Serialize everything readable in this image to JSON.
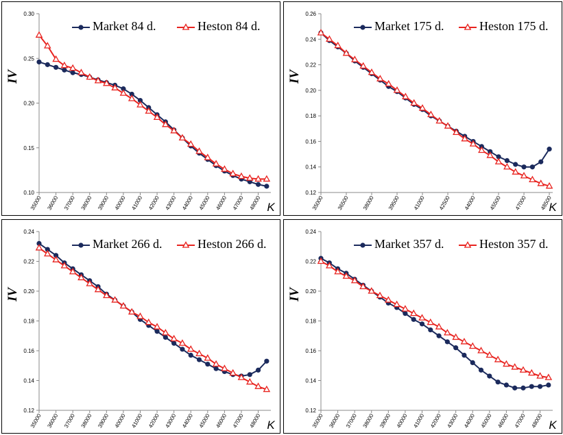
{
  "chart_data": [
    {
      "type": "line",
      "x_label": "K",
      "y_label": "IV",
      "x": [
        35000,
        35500,
        36000,
        36500,
        37000,
        37500,
        38000,
        38500,
        39000,
        39500,
        40000,
        40500,
        41000,
        41500,
        42000,
        42500,
        43000,
        43500,
        44000,
        44500,
        45000,
        45500,
        46000,
        46500,
        47000,
        47500,
        48000,
        48500
      ],
      "series": [
        {
          "name": "Market 84 d.",
          "color": "#1b2a5c",
          "marker": "circle",
          "values": [
            0.246,
            0.243,
            0.24,
            0.237,
            0.234,
            0.232,
            0.229,
            0.226,
            0.223,
            0.22,
            0.216,
            0.21,
            0.203,
            0.195,
            0.187,
            0.179,
            0.17,
            0.161,
            0.152,
            0.144,
            0.137,
            0.13,
            0.124,
            0.119,
            0.115,
            0.112,
            0.109,
            0.107
          ]
        },
        {
          "name": "Heston 84 d.",
          "color": "#e8231f",
          "marker": "triangle",
          "values": [
            0.276,
            0.264,
            0.249,
            0.242,
            0.239,
            0.234,
            0.229,
            0.225,
            0.222,
            0.217,
            0.211,
            0.205,
            0.198,
            0.191,
            0.184,
            0.176,
            0.169,
            0.161,
            0.154,
            0.146,
            0.139,
            0.132,
            0.126,
            0.121,
            0.118,
            0.116,
            0.115,
            0.115
          ]
        }
      ],
      "xlim": [
        35000,
        48750
      ],
      "xticks": [
        35000,
        36000,
        37000,
        38000,
        39000,
        40000,
        41000,
        42000,
        43000,
        44000,
        45000,
        46000,
        47000,
        48000
      ],
      "ylim": [
        0.1,
        0.3
      ],
      "yticks": [
        {
          "value": 0.1,
          "label": "0.10"
        },
        0.15,
        {
          "value": 0.2,
          "label": "0.20"
        },
        0.25,
        {
          "value": 0.3,
          "label": "0.30"
        }
      ]
    },
    {
      "type": "line",
      "x_label": "K",
      "y_label": "IV",
      "x": [
        35000,
        35500,
        36000,
        36500,
        37000,
        37500,
        38000,
        38500,
        39000,
        39500,
        40000,
        40500,
        41000,
        41500,
        42000,
        42500,
        43000,
        43500,
        44000,
        44500,
        45000,
        45500,
        46000,
        46500,
        47000,
        47500,
        48000,
        48500
      ],
      "series": [
        {
          "name": "Market 175 d.",
          "color": "#1b2a5c",
          "marker": "circle",
          "values": [
            0.245,
            0.239,
            0.234,
            0.229,
            0.223,
            0.218,
            0.213,
            0.208,
            0.203,
            0.199,
            0.194,
            0.189,
            0.185,
            0.18,
            0.176,
            0.172,
            0.168,
            0.164,
            0.16,
            0.156,
            0.152,
            0.148,
            0.145,
            0.142,
            0.14,
            0.14,
            0.144,
            0.154
          ]
        },
        {
          "name": "Heston 175 d.",
          "color": "#e8231f",
          "marker": "triangle",
          "values": [
            0.245,
            0.24,
            0.235,
            0.229,
            0.224,
            0.219,
            0.214,
            0.209,
            0.205,
            0.2,
            0.195,
            0.19,
            0.186,
            0.181,
            0.176,
            0.172,
            0.167,
            0.162,
            0.158,
            0.153,
            0.149,
            0.144,
            0.14,
            0.136,
            0.133,
            0.13,
            0.127,
            0.125
          ]
        }
      ],
      "xlim": [
        35000,
        48700
      ],
      "xticks": [
        35000,
        36500,
        38000,
        39500,
        41000,
        42500,
        44000,
        45500,
        47000,
        48500
      ],
      "ylim": [
        0.12,
        0.26
      ],
      "yticks": [
        0.12,
        0.14,
        0.16,
        0.18,
        {
          "value": 0.2,
          "label": "0.20"
        },
        0.22,
        0.24,
        0.26
      ]
    },
    {
      "type": "line",
      "x_label": "K",
      "y_label": "IV",
      "x": [
        35000,
        35500,
        36000,
        36500,
        37000,
        37500,
        38000,
        38500,
        39000,
        39500,
        40000,
        40500,
        41000,
        41500,
        42000,
        42500,
        43000,
        43500,
        44000,
        44500,
        45000,
        45500,
        46000,
        46500,
        47000,
        47500,
        48000,
        48500
      ],
      "series": [
        {
          "name": "Market 266 d.",
          "color": "#1b2a5c",
          "marker": "circle",
          "values": [
            0.232,
            0.228,
            0.224,
            0.219,
            0.215,
            0.211,
            0.207,
            0.203,
            0.198,
            0.194,
            0.19,
            0.186,
            0.181,
            0.177,
            0.173,
            0.169,
            0.165,
            0.161,
            0.157,
            0.154,
            0.151,
            0.148,
            0.146,
            0.144,
            0.143,
            0.144,
            0.147,
            0.153
          ]
        },
        {
          "name": "Heston 266 d.",
          "color": "#e8231f",
          "marker": "triangle",
          "values": [
            0.229,
            0.225,
            0.221,
            0.217,
            0.213,
            0.209,
            0.205,
            0.201,
            0.197,
            0.194,
            0.19,
            0.186,
            0.183,
            0.179,
            0.176,
            0.172,
            0.168,
            0.165,
            0.161,
            0.158,
            0.155,
            0.151,
            0.148,
            0.145,
            0.142,
            0.139,
            0.136,
            0.134
          ]
        }
      ],
      "xlim": [
        35000,
        48750
      ],
      "xticks": [
        35000,
        36000,
        37000,
        38000,
        39000,
        40000,
        41000,
        42000,
        43000,
        44000,
        45000,
        46000,
        47000,
        48000
      ],
      "ylim": [
        0.12,
        0.24
      ],
      "yticks": [
        0.12,
        0.14,
        0.16,
        0.18,
        {
          "value": 0.2,
          "label": "0.20"
        },
        0.22,
        0.24
      ]
    },
    {
      "type": "line",
      "x_label": "K",
      "y_label": "IV",
      "x": [
        35000,
        35500,
        36000,
        36500,
        37000,
        37500,
        38000,
        38500,
        39000,
        39500,
        40000,
        40500,
        41000,
        41500,
        42000,
        42500,
        43000,
        43500,
        44000,
        44500,
        45000,
        45500,
        46000,
        46500,
        47000,
        47500,
        48000,
        48500
      ],
      "series": [
        {
          "name": "Market 357 d.",
          "color": "#1b2a5c",
          "marker": "circle",
          "values": [
            0.222,
            0.219,
            0.215,
            0.212,
            0.208,
            0.204,
            0.2,
            0.196,
            0.192,
            0.189,
            0.185,
            0.181,
            0.178,
            0.174,
            0.17,
            0.166,
            0.162,
            0.157,
            0.152,
            0.147,
            0.143,
            0.139,
            0.137,
            0.135,
            0.135,
            0.136,
            0.136,
            0.137
          ]
        },
        {
          "name": "Heston 357 d.",
          "color": "#e8231f",
          "marker": "triangle",
          "values": [
            0.22,
            0.217,
            0.213,
            0.21,
            0.207,
            0.203,
            0.2,
            0.197,
            0.194,
            0.191,
            0.188,
            0.185,
            0.182,
            0.179,
            0.176,
            0.172,
            0.169,
            0.166,
            0.163,
            0.16,
            0.157,
            0.154,
            0.151,
            0.149,
            0.147,
            0.145,
            0.143,
            0.142
          ]
        }
      ],
      "xlim": [
        35000,
        48750
      ],
      "xticks": [
        35000,
        36000,
        37000,
        38000,
        39000,
        40000,
        41000,
        42000,
        43000,
        44000,
        45000,
        46000,
        47000,
        48000
      ],
      "ylim": [
        0.12,
        0.24
      ],
      "yticks": [
        0.12,
        0.14,
        0.16,
        0.18,
        {
          "value": 0.2,
          "label": "0.20"
        },
        0.22,
        0.24
      ]
    }
  ]
}
